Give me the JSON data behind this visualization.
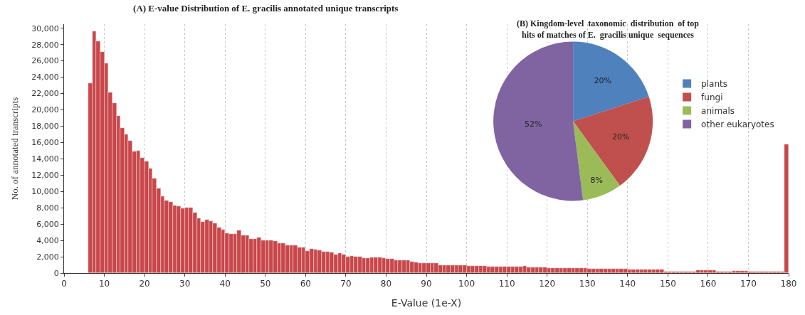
{
  "chart_data": [
    {
      "type": "histogram",
      "title": "(A) E-value Distribution of E. gracilis annotated unique transcripts",
      "xlabel": "E-Value (1e-X)",
      "ylabel": "No. of annotated transcripts",
      "color": "#c8474a",
      "bins": [
        6,
        7,
        8,
        9,
        10,
        11,
        12,
        13,
        14,
        15,
        16,
        17,
        18,
        19,
        20,
        21,
        22,
        23,
        24,
        25,
        26,
        27,
        28,
        29,
        30,
        31,
        32,
        33,
        34,
        35,
        36,
        37,
        38,
        39,
        40,
        41,
        42,
        43,
        44,
        45,
        46,
        47,
        48,
        49,
        50,
        51,
        52,
        53,
        54,
        55,
        56,
        57,
        58,
        59,
        60,
        61,
        62,
        63,
        64,
        65,
        66,
        67,
        68,
        69,
        70,
        71,
        72,
        73,
        74,
        75,
        76,
        77,
        78,
        79,
        80,
        81,
        82,
        83,
        84,
        85,
        86,
        87,
        88,
        89,
        90,
        91,
        92,
        93,
        94,
        95,
        96,
        97,
        98,
        99,
        100,
        101,
        102,
        103,
        104,
        105,
        106,
        107,
        108,
        109,
        110,
        111,
        112,
        113,
        114,
        115,
        116,
        117,
        118,
        119,
        120,
        121,
        122,
        123,
        124,
        125,
        126,
        127,
        128,
        129,
        130,
        131,
        132,
        133,
        134,
        135,
        136,
        137,
        138,
        139,
        140,
        141,
        142,
        143,
        144,
        145,
        146,
        147,
        148,
        149,
        150,
        151,
        152,
        153,
        154,
        155,
        156,
        157,
        158,
        159,
        160,
        161,
        162,
        163,
        164,
        165,
        166,
        167,
        168,
        169,
        170,
        171,
        172,
        173,
        174,
        175,
        176,
        177,
        178,
        179,
        180
      ],
      "values": [
        23300,
        29600,
        28400,
        27100,
        25700,
        22100,
        20800,
        19300,
        17800,
        17000,
        16200,
        14900,
        15000,
        14100,
        13700,
        12800,
        11600,
        10400,
        9400,
        8900,
        8700,
        8300,
        8200,
        7900,
        8000,
        8000,
        7400,
        6700,
        6300,
        6500,
        6400,
        6100,
        5600,
        5300,
        4900,
        4800,
        4800,
        5200,
        4600,
        4600,
        4200,
        4200,
        4400,
        4000,
        4000,
        4000,
        3900,
        3700,
        3700,
        3400,
        3400,
        3400,
        3100,
        3100,
        2700,
        3000,
        2900,
        2800,
        2600,
        2600,
        2500,
        2300,
        2400,
        2300,
        2000,
        2100,
        2000,
        2000,
        1800,
        1800,
        1900,
        1900,
        1900,
        1800,
        1700,
        1700,
        1600,
        1600,
        1600,
        1600,
        1400,
        1300,
        1200,
        1200,
        1200,
        1200,
        1200,
        1000,
        1000,
        1000,
        1000,
        1000,
        1000,
        1000,
        850,
        850,
        850,
        850,
        850,
        750,
        750,
        750,
        750,
        750,
        800,
        800,
        800,
        800,
        900,
        700,
        700,
        700,
        700,
        700,
        600,
        600,
        600,
        600,
        600,
        600,
        600,
        600,
        600,
        600,
        500,
        500,
        500,
        500,
        500,
        500,
        500,
        500,
        500,
        500,
        400,
        400,
        400,
        400,
        400,
        400,
        400,
        400,
        400,
        200,
        200,
        200,
        200,
        200,
        200,
        200,
        200,
        350,
        350,
        350,
        350,
        350,
        200,
        200,
        200,
        200,
        300,
        300,
        300,
        300,
        200,
        200,
        200,
        200,
        200,
        200,
        200,
        200,
        200,
        15800
      ],
      "xlim": [
        0,
        180
      ],
      "xticks": [
        0,
        10,
        20,
        30,
        40,
        50,
        60,
        70,
        80,
        90,
        100,
        110,
        120,
        130,
        140,
        150,
        160,
        170,
        180
      ],
      "ylim": [
        0,
        30500
      ],
      "yticks": [
        {
          "value": 0,
          "label": "0"
        },
        {
          "value": 2000,
          "label": "2,000"
        },
        {
          "value": 4000,
          "label": "4,000"
        },
        {
          "value": 6000,
          "label": "6,000"
        },
        {
          "value": 8000,
          "label": "8,000"
        },
        {
          "value": 10000,
          "label": "10,000"
        },
        {
          "value": 12000,
          "label": "12,000"
        },
        {
          "value": 14000,
          "label": "14,000"
        },
        {
          "value": 16000,
          "label": "16,000"
        },
        {
          "value": 18000,
          "label": "18,000"
        },
        {
          "value": 20000,
          "label": "20,000"
        },
        {
          "value": 22000,
          "label": "22,000"
        },
        {
          "value": 24000,
          "label": "24,000"
        },
        {
          "value": 26000,
          "label": "26,000"
        },
        {
          "value": 28000,
          "label": "28,000"
        },
        {
          "value": 30000,
          "label": "30,000"
        }
      ],
      "grid": "x",
      "legend": false
    },
    {
      "type": "pie",
      "title": "(B) Kingdom-level  taxonomic  distribution  of top hits of matches of E.  gracilis unique  sequences",
      "categories": [
        "plants",
        "fungi",
        "animals",
        "other eukaryotes"
      ],
      "values": [
        20,
        20,
        8,
        52
      ],
      "colors": [
        "#4f81bd",
        "#c0504d",
        "#9bbb59",
        "#8064a2"
      ],
      "value_labels": [
        "20%",
        "20%",
        "8%",
        "52%"
      ],
      "legend": "right"
    }
  ]
}
